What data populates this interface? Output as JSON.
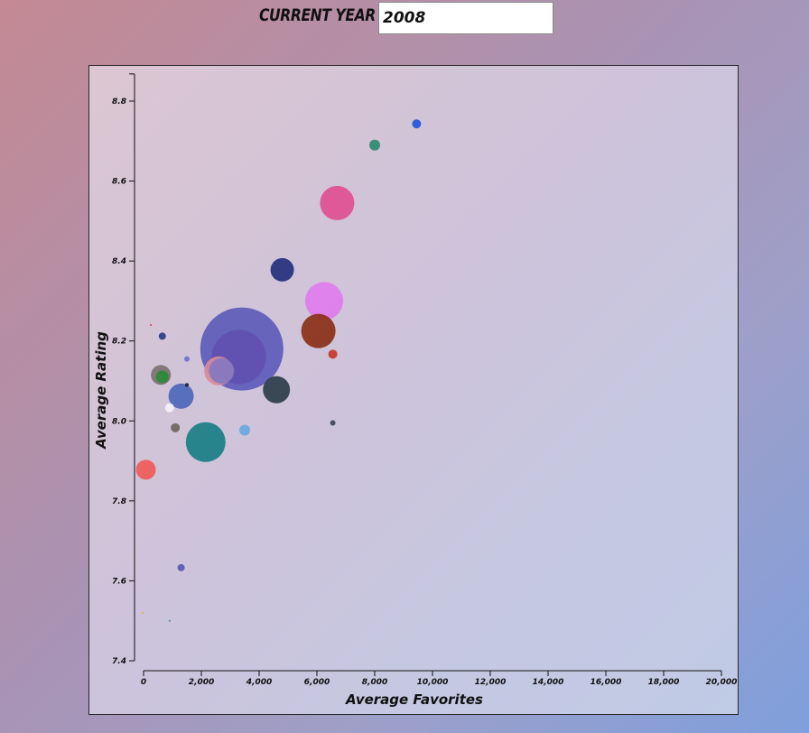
{
  "header": {
    "year_label": "Current Year",
    "year_value": "2008"
  },
  "chart_data": {
    "type": "scatter",
    "xlabel": "Average Favorites",
    "ylabel": "Average Rating",
    "xlim": [
      0,
      20000
    ],
    "ylim": [
      7.4,
      8.85
    ],
    "x_ticks": [
      "0",
      "2,000",
      "4,000",
      "6,000",
      "8,000",
      "10,000",
      "12,000",
      "14,000",
      "16,000",
      "18,000",
      "20,000"
    ],
    "y_ticks": [
      "7.4",
      "7.6",
      "7.8",
      "8.0",
      "8.2",
      "8.4",
      "8.6",
      "8.8"
    ],
    "x_tick_values": [
      0,
      2000,
      4000,
      6000,
      8000,
      10000,
      12000,
      14000,
      16000,
      18000,
      20000
    ],
    "y_tick_values": [
      7.4,
      7.6,
      7.8,
      8.0,
      8.2,
      8.4,
      8.6,
      8.8
    ],
    "grid": false,
    "points": [
      {
        "x": 3400,
        "y": 8.18,
        "size": 46,
        "color": "#5a5ab8"
      },
      {
        "x": 3300,
        "y": 8.16,
        "size": 30,
        "color": "#6150b0"
      },
      {
        "x": 2600,
        "y": 8.125,
        "size": 16,
        "color": "#d98a9a"
      },
      {
        "x": 2700,
        "y": 8.125,
        "size": 14,
        "color": "#8478c0"
      },
      {
        "x": 6700,
        "y": 8.545,
        "size": 19,
        "color": "#e04e92"
      },
      {
        "x": 6250,
        "y": 8.3,
        "size": 21,
        "color": "#e07ced"
      },
      {
        "x": 6050,
        "y": 8.225,
        "size": 19,
        "color": "#8a3018"
      },
      {
        "x": 4800,
        "y": 8.378,
        "size": 13,
        "color": "#24307e"
      },
      {
        "x": 4600,
        "y": 8.078,
        "size": 15,
        "color": "#2e3e4a"
      },
      {
        "x": 2150,
        "y": 7.947,
        "size": 22,
        "color": "#1a7f86"
      },
      {
        "x": 1300,
        "y": 8.062,
        "size": 14,
        "color": "#4d67bb"
      },
      {
        "x": 600,
        "y": 8.115,
        "size": 11,
        "color": "#7c7070"
      },
      {
        "x": 650,
        "y": 8.11,
        "size": 7,
        "color": "#2a8a3a"
      },
      {
        "x": 80,
        "y": 7.878,
        "size": 11,
        "color": "#f05a5a"
      },
      {
        "x": 9450,
        "y": 8.743,
        "size": 5,
        "color": "#2255d8"
      },
      {
        "x": 8000,
        "y": 8.69,
        "size": 6,
        "color": "#2e8a70"
      },
      {
        "x": 6550,
        "y": 8.167,
        "size": 5,
        "color": "#c83828"
      },
      {
        "x": 3500,
        "y": 7.977,
        "size": 6,
        "color": "#6aa8e0"
      },
      {
        "x": 1100,
        "y": 7.983,
        "size": 5,
        "color": "#6e6660"
      },
      {
        "x": 900,
        "y": 8.033,
        "size": 5,
        "color": "#f4f0f8"
      },
      {
        "x": 650,
        "y": 8.212,
        "size": 4,
        "color": "#2c3a8a"
      },
      {
        "x": 1500,
        "y": 8.155,
        "size": 3,
        "color": "#7070d0"
      },
      {
        "x": 1500,
        "y": 8.09,
        "size": 2,
        "color": "#1a1a2a"
      },
      {
        "x": 6550,
        "y": 7.995,
        "size": 3,
        "color": "#3a4858"
      },
      {
        "x": 1300,
        "y": 7.633,
        "size": 4,
        "color": "#5a5ab8"
      },
      {
        "x": 250,
        "y": 8.24,
        "size": 1,
        "color": "#d03030"
      },
      {
        "x": 900,
        "y": 7.5,
        "size": 1,
        "color": "#2a8a8a"
      },
      {
        "x": -30,
        "y": 7.52,
        "size": 1,
        "color": "#e0b030"
      }
    ]
  }
}
